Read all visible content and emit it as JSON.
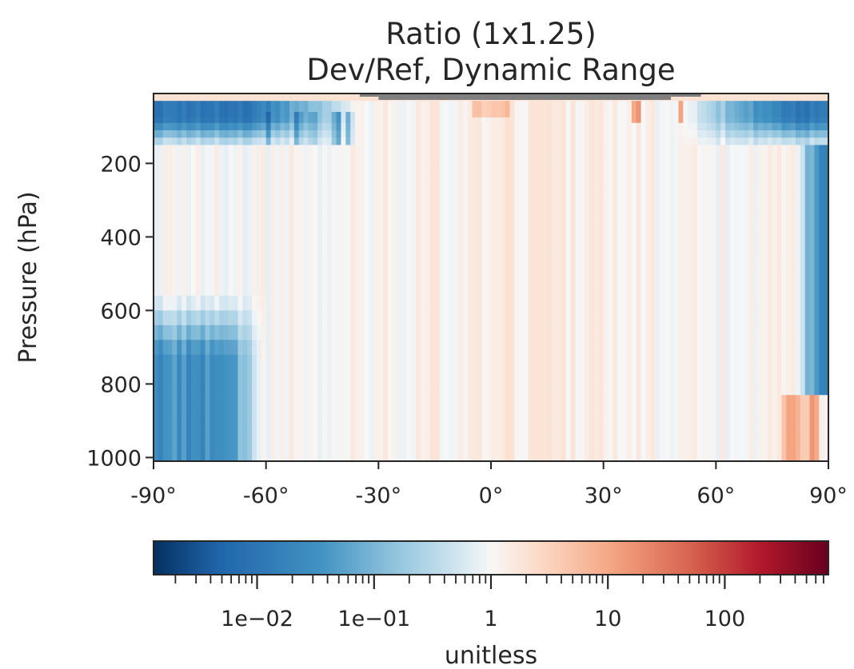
{
  "chart_data": {
    "type": "heatmap",
    "title_lines": [
      "Ratio (1x1.25)",
      "Dev/Ref, Dynamic Range"
    ],
    "xlabel": "",
    "ylabel": "Pressure (hPa)",
    "x_range": [
      -90,
      90
    ],
    "y_range": [
      1010,
      10
    ],
    "y_inverted": true,
    "x_ticks": [
      -90,
      -60,
      -30,
      0,
      30,
      60,
      90
    ],
    "x_tick_labels": [
      "-90°",
      "-60°",
      "-30°",
      "0°",
      "30°",
      "60°",
      "90°"
    ],
    "y_ticks": [
      200,
      400,
      600,
      800,
      1000
    ],
    "y_tick_labels": [
      "200",
      "400",
      "600",
      "800",
      "1000"
    ],
    "colorbar": {
      "label": "unitless",
      "scale": "log",
      "range": [
        0.0013,
        770
      ],
      "tick_values": [
        0.01,
        0.1,
        1,
        10,
        100
      ],
      "tick_labels": [
        "1e−02",
        "1e−01",
        "1",
        "10",
        "100"
      ],
      "colormap": "RdBu_r"
    },
    "missing_color": "#808080",
    "grid": false,
    "observed_features": [
      {
        "region": "top layer (~10-30 hPa), all latitudes",
        "ratio_approx": 2
      },
      {
        "region": "near-top band, 75S-90S",
        "ratio_approx": 0.005
      },
      {
        "region": "near-top band, 75N-90N",
        "ratio_approx": 0.005
      },
      {
        "region": "patches ~70-140 hPa, 60S-35S",
        "ratio_approx": 0.01
      },
      {
        "region": "patches ~30-90 hPa, 40N-50N",
        "ratio_approx": 30
      },
      {
        "region": "north polar column 82N-90N, 150-800 hPa",
        "ratio_approx": 0.02
      },
      {
        "region": "south polar surface 600-1000 hPa, 90S-60S",
        "ratio_approx": 0.03
      },
      {
        "region": "tropics -30 to 45, 100-1000 hPa",
        "ratio_approx": 1.3
      },
      {
        "region": "mid-latitudes background",
        "ratio_approx": 0.8
      },
      {
        "region": "north near-surface 78N-88N, 830-1000 hPa",
        "ratio_approx": 3
      },
      {
        "region": "missing data at top, 30S-50N",
        "ratio_approx": null
      }
    ]
  }
}
